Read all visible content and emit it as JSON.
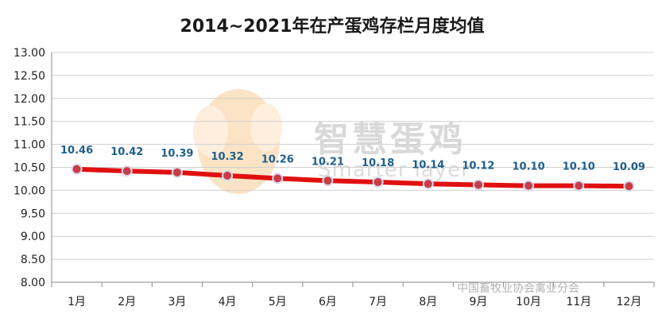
{
  "chart_data": {
    "type": "line",
    "title": "2014~2021年在产蛋鸡存栏月度均值",
    "categories": [
      "1月",
      "2月",
      "3月",
      "4月",
      "5月",
      "6月",
      "7月",
      "8月",
      "9月",
      "10月",
      "11月",
      "12月"
    ],
    "series": [
      {
        "values": [
          10.46,
          10.42,
          10.39,
          10.32,
          10.26,
          10.21,
          10.18,
          10.14,
          10.12,
          10.1,
          10.1,
          10.09
        ]
      }
    ],
    "data_labels": [
      "10.46",
      "10.42",
      "10.39",
      "10.32",
      "10.26",
      "10.21",
      "10.18",
      "10.14",
      "10.12",
      "10.10",
      "10.10",
      "10.09"
    ],
    "y_ticks": [
      "8.00",
      "8.50",
      "9.00",
      "9.50",
      "10.00",
      "10.50",
      "11.00",
      "11.50",
      "12.00",
      "12.50",
      "13.00"
    ],
    "ylim": [
      8.0,
      13.0
    ],
    "grid": true,
    "legend": "none",
    "colors": {
      "line": "#e01010",
      "marker_fill": "#c83c46",
      "marker_stroke": "#d8d8ee",
      "label": "#1f5f8b",
      "grid": "#d0d0d0"
    }
  },
  "watermark": {
    "text": "智慧蛋鸡",
    "subtext": "Smarter layer"
  },
  "credit": "中国畜牧业协会禽业分会"
}
